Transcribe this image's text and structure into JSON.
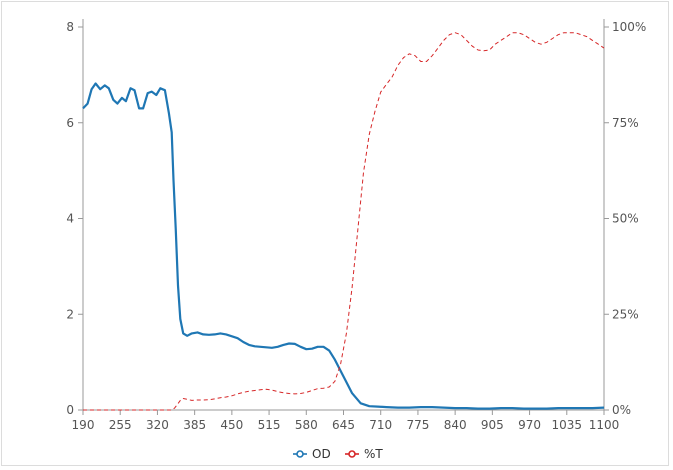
{
  "chart_data": {
    "type": "line",
    "title": "",
    "xlabel": "",
    "ylabel": "",
    "xlim": [
      190,
      1100
    ],
    "x_ticks": [
      "190",
      "255",
      "320",
      "385",
      "450",
      "515",
      "580",
      "645",
      "710",
      "775",
      "840",
      "905",
      "970",
      "1035",
      "1100"
    ],
    "y_left": {
      "lim": [
        0,
        8
      ],
      "ticks": [
        "0",
        "2",
        "4",
        "6",
        "8"
      ]
    },
    "y_right": {
      "lim": [
        0,
        100
      ],
      "ticks": [
        "0%",
        "25%",
        "50%",
        "75%",
        "100%"
      ]
    },
    "grid": false,
    "legend": {
      "position": "bottom-center"
    },
    "series": [
      {
        "name": "OD",
        "axis": "left",
        "color": "#1f77b4",
        "style": "solid",
        "points": [
          [
            190,
            6.3
          ],
          [
            198,
            6.4
          ],
          [
            205,
            6.7
          ],
          [
            212,
            6.82
          ],
          [
            220,
            6.7
          ],
          [
            228,
            6.78
          ],
          [
            235,
            6.72
          ],
          [
            243,
            6.48
          ],
          [
            250,
            6.4
          ],
          [
            258,
            6.52
          ],
          [
            265,
            6.45
          ],
          [
            273,
            6.72
          ],
          [
            280,
            6.68
          ],
          [
            288,
            6.3
          ],
          [
            295,
            6.3
          ],
          [
            303,
            6.62
          ],
          [
            310,
            6.65
          ],
          [
            318,
            6.58
          ],
          [
            325,
            6.72
          ],
          [
            333,
            6.68
          ],
          [
            340,
            6.2
          ],
          [
            345,
            5.8
          ],
          [
            348,
            4.8
          ],
          [
            352,
            3.8
          ],
          [
            356,
            2.6
          ],
          [
            360,
            1.9
          ],
          [
            365,
            1.6
          ],
          [
            372,
            1.55
          ],
          [
            380,
            1.6
          ],
          [
            390,
            1.62
          ],
          [
            400,
            1.58
          ],
          [
            410,
            1.57
          ],
          [
            420,
            1.58
          ],
          [
            430,
            1.6
          ],
          [
            440,
            1.58
          ],
          [
            450,
            1.54
          ],
          [
            460,
            1.5
          ],
          [
            470,
            1.42
          ],
          [
            480,
            1.36
          ],
          [
            490,
            1.33
          ],
          [
            500,
            1.32
          ],
          [
            510,
            1.31
          ],
          [
            520,
            1.3
          ],
          [
            530,
            1.32
          ],
          [
            540,
            1.36
          ],
          [
            550,
            1.39
          ],
          [
            560,
            1.38
          ],
          [
            570,
            1.32
          ],
          [
            580,
            1.27
          ],
          [
            590,
            1.28
          ],
          [
            600,
            1.32
          ],
          [
            610,
            1.32
          ],
          [
            620,
            1.24
          ],
          [
            630,
            1.05
          ],
          [
            645,
            0.7
          ],
          [
            660,
            0.35
          ],
          [
            675,
            0.14
          ],
          [
            690,
            0.08
          ],
          [
            705,
            0.07
          ],
          [
            720,
            0.06
          ],
          [
            740,
            0.05
          ],
          [
            760,
            0.05
          ],
          [
            780,
            0.06
          ],
          [
            800,
            0.06
          ],
          [
            820,
            0.05
          ],
          [
            840,
            0.04
          ],
          [
            860,
            0.04
          ],
          [
            880,
            0.03
          ],
          [
            900,
            0.03
          ],
          [
            920,
            0.04
          ],
          [
            940,
            0.04
          ],
          [
            960,
            0.03
          ],
          [
            980,
            0.03
          ],
          [
            1000,
            0.03
          ],
          [
            1020,
            0.04
          ],
          [
            1040,
            0.04
          ],
          [
            1060,
            0.04
          ],
          [
            1080,
            0.04
          ],
          [
            1100,
            0.05
          ]
        ]
      },
      {
        "name": "%T",
        "axis": "right",
        "color": "#d62728",
        "style": "dashed",
        "points": [
          [
            190,
            0
          ],
          [
            220,
            0
          ],
          [
            260,
            0
          ],
          [
            300,
            0
          ],
          [
            330,
            0
          ],
          [
            345,
            0
          ],
          [
            350,
            0.5
          ],
          [
            355,
            1.5
          ],
          [
            360,
            2.5
          ],
          [
            365,
            3
          ],
          [
            372,
            2.8
          ],
          [
            380,
            2.5
          ],
          [
            390,
            2.6
          ],
          [
            400,
            2.6
          ],
          [
            410,
            2.7
          ],
          [
            420,
            2.9
          ],
          [
            430,
            3.2
          ],
          [
            440,
            3.4
          ],
          [
            450,
            3.7
          ],
          [
            460,
            4.2
          ],
          [
            470,
            4.6
          ],
          [
            480,
            4.9
          ],
          [
            490,
            5.1
          ],
          [
            500,
            5.3
          ],
          [
            510,
            5.4
          ],
          [
            520,
            5.2
          ],
          [
            530,
            4.8
          ],
          [
            540,
            4.5
          ],
          [
            550,
            4.3
          ],
          [
            560,
            4.2
          ],
          [
            570,
            4.3
          ],
          [
            580,
            4.6
          ],
          [
            590,
            5.1
          ],
          [
            600,
            5.6
          ],
          [
            610,
            5.7
          ],
          [
            620,
            6.0
          ],
          [
            630,
            7.5
          ],
          [
            640,
            12
          ],
          [
            650,
            20
          ],
          [
            660,
            32
          ],
          [
            670,
            47
          ],
          [
            680,
            62
          ],
          [
            690,
            72
          ],
          [
            700,
            78
          ],
          [
            710,
            83
          ],
          [
            720,
            85
          ],
          [
            730,
            87
          ],
          [
            740,
            90
          ],
          [
            750,
            92
          ],
          [
            760,
            93
          ],
          [
            770,
            92.5
          ],
          [
            780,
            91
          ],
          [
            790,
            91
          ],
          [
            800,
            92.5
          ],
          [
            810,
            94.5
          ],
          [
            820,
            96.5
          ],
          [
            830,
            98
          ],
          [
            840,
            98.5
          ],
          [
            850,
            98
          ],
          [
            860,
            96.5
          ],
          [
            870,
            95
          ],
          [
            880,
            94
          ],
          [
            890,
            93.8
          ],
          [
            900,
            94
          ],
          [
            910,
            95.5
          ],
          [
            920,
            96.5
          ],
          [
            930,
            97.5
          ],
          [
            940,
            98.5
          ],
          [
            950,
            98.5
          ],
          [
            960,
            98
          ],
          [
            970,
            97
          ],
          [
            980,
            96
          ],
          [
            990,
            95.5
          ],
          [
            1000,
            96
          ],
          [
            1010,
            97
          ],
          [
            1020,
            98
          ],
          [
            1030,
            98.5
          ],
          [
            1040,
            98.5
          ],
          [
            1050,
            98.5
          ],
          [
            1060,
            98
          ],
          [
            1070,
            97.5
          ],
          [
            1080,
            96.5
          ],
          [
            1090,
            95.5
          ],
          [
            1100,
            94.5
          ]
        ]
      }
    ]
  }
}
